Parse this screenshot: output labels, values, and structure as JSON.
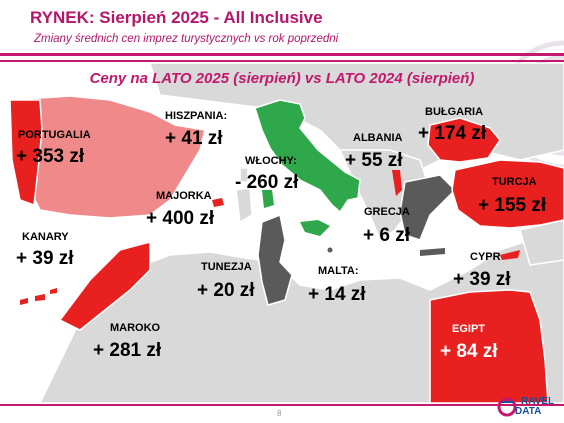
{
  "header": {
    "title": "RYNEK: Sierpień 2025 - All Inclusive",
    "subtitle": "Zmiany średnich cen imprez turystycznych vs rok poprzedni"
  },
  "map": {
    "headline": "Ceny na LATO 2025 (sierpień) vs  LATO 2024 (sierpień)",
    "colors": {
      "increase_small": "#f08a8a",
      "increase_large": "#e8201f",
      "decrease": "#2ea84a",
      "small_change": "#5a5a5a",
      "land": "#d9d9d9",
      "sea": "#ffffff"
    },
    "destinations": [
      {
        "key": "portugalia",
        "name": "PORTUGALIA",
        "change": "+ 353 zł"
      },
      {
        "key": "hiszpania",
        "name": "HISZPANIA:",
        "change": "+ 41 zł"
      },
      {
        "key": "wlochy",
        "name": "WŁOCHY:",
        "change": "- 260 zł"
      },
      {
        "key": "albania",
        "name": "ALBANIA",
        "change": "+ 55 zł"
      },
      {
        "key": "bulgaria",
        "name": "BUŁGARIA",
        "change": "+ 174 zł"
      },
      {
        "key": "majorka",
        "name": "MAJORKA",
        "change": "+ 400 zł"
      },
      {
        "key": "turcja",
        "name": "TURCJA",
        "change": "+ 155 zł"
      },
      {
        "key": "grecja",
        "name": "GRECJA",
        "change": "+ 6 zł"
      },
      {
        "key": "kanary",
        "name": "KANARY",
        "change": "+ 39 zł"
      },
      {
        "key": "tunezja",
        "name": "TUNEZJA",
        "change": "+ 20 zł"
      },
      {
        "key": "malta",
        "name": "MALTA:",
        "change": "+ 14 zł"
      },
      {
        "key": "cypr",
        "name": "CYPR",
        "change": "+ 39 zł"
      },
      {
        "key": "maroko",
        "name": "MAROKO",
        "change": "+ 281 zł"
      },
      {
        "key": "egipt",
        "name": "EGIPT",
        "change": "+ 84 zł"
      }
    ]
  },
  "footer": {
    "page_number": "8",
    "logo_line1": "RAVEL",
    "logo_line2": "DATA"
  }
}
